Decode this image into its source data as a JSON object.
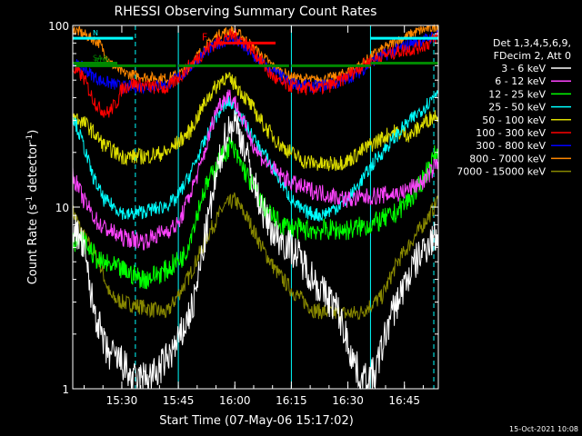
{
  "chart_data": {
    "type": "line",
    "title": "RHESSI Observing Summary Count Rates",
    "xlabel": "Start Time (07-May-06 15:17:02)",
    "ylabel_main": "Count Rate (s",
    "ylabel_exp1": "-1",
    "ylabel_mid": " detector",
    "ylabel_exp2": "-1",
    "ylabel_end": ")",
    "y_scale": "log",
    "ylim": [
      1,
      100
    ],
    "xlim": [
      15.283,
      16.9
    ],
    "x_tick_labels": [
      "15:30",
      "15:45",
      "16:00",
      "16:15",
      "16:30",
      "16:45"
    ],
    "x_tick_values": [
      15.5,
      15.75,
      16.0,
      16.25,
      16.5,
      16.75
    ],
    "y_tick_labels": [
      "1",
      "10",
      "100"
    ],
    "y_tick_values": [
      1,
      10,
      100
    ],
    "legend_header": [
      "Det 1,3,4,5,6,9,",
      "FDecim 2, Att 0"
    ],
    "timestamp": "15-Oct-2021 10:08",
    "series": [
      {
        "name": "3 - 6 keV",
        "color": "#ffffff",
        "points": [
          [
            15.283,
            8
          ],
          [
            15.33,
            6
          ],
          [
            15.37,
            3
          ],
          [
            15.43,
            1.6
          ],
          [
            15.5,
            1.4
          ],
          [
            15.55,
            1.1
          ],
          [
            15.65,
            1.2
          ],
          [
            15.75,
            1.8
          ],
          [
            15.82,
            3
          ],
          [
            15.87,
            7
          ],
          [
            15.92,
            15
          ],
          [
            15.96,
            25
          ],
          [
            16.0,
            30
          ],
          [
            16.04,
            22
          ],
          [
            16.08,
            14
          ],
          [
            16.13,
            9
          ],
          [
            16.18,
            7
          ],
          [
            16.25,
            6
          ],
          [
            16.3,
            5
          ],
          [
            16.38,
            3.5
          ],
          [
            16.45,
            2.8
          ],
          [
            16.52,
            1.5
          ],
          [
            16.56,
            1.1
          ],
          [
            16.62,
            1.2
          ],
          [
            16.68,
            2.3
          ],
          [
            16.74,
            3.5
          ],
          [
            16.8,
            5
          ],
          [
            16.86,
            6.5
          ],
          [
            16.9,
            7
          ]
        ]
      },
      {
        "name": "6 - 12 keV",
        "color": "#ff44ff",
        "points": [
          [
            15.283,
            15
          ],
          [
            15.33,
            11
          ],
          [
            15.4,
            8
          ],
          [
            15.5,
            6.8
          ],
          [
            15.6,
            6.5
          ],
          [
            15.75,
            8
          ],
          [
            15.85,
            17
          ],
          [
            15.92,
            35
          ],
          [
            15.97,
            42
          ],
          [
            16.0,
            38
          ],
          [
            16.05,
            27
          ],
          [
            16.1,
            20
          ],
          [
            16.15,
            17
          ],
          [
            16.2,
            15
          ],
          [
            16.28,
            13
          ],
          [
            16.38,
            12
          ],
          [
            16.5,
            11
          ],
          [
            16.62,
            11.5
          ],
          [
            16.74,
            12
          ],
          [
            16.84,
            14
          ],
          [
            16.9,
            18
          ]
        ]
      },
      {
        "name": "12 - 25 keV",
        "color": "#00ff00",
        "points": [
          [
            15.283,
            6.5
          ],
          [
            15.33,
            6.5
          ],
          [
            15.4,
            5
          ],
          [
            15.5,
            4.5
          ],
          [
            15.6,
            4
          ],
          [
            15.7,
            4.5
          ],
          [
            15.78,
            5.5
          ],
          [
            15.86,
            12
          ],
          [
            15.93,
            18
          ],
          [
            15.98,
            22
          ],
          [
            16.03,
            17
          ],
          [
            16.08,
            13
          ],
          [
            16.13,
            10
          ],
          [
            16.2,
            8
          ],
          [
            16.3,
            7.5
          ],
          [
            16.4,
            7.5
          ],
          [
            16.5,
            7.5
          ],
          [
            16.6,
            8
          ],
          [
            16.7,
            9
          ],
          [
            16.8,
            12
          ],
          [
            16.9,
            21
          ]
        ]
      },
      {
        "name": "25 - 50 keV",
        "color": "#00ffff",
        "points": [
          [
            15.283,
            32
          ],
          [
            15.3,
            28
          ],
          [
            15.33,
            22
          ],
          [
            15.37,
            15
          ],
          [
            15.42,
            11
          ],
          [
            15.47,
            10
          ],
          [
            15.52,
            9
          ],
          [
            15.6,
            9.5
          ],
          [
            15.68,
            10
          ],
          [
            15.74,
            11
          ],
          [
            15.8,
            15
          ],
          [
            15.86,
            22
          ],
          [
            15.92,
            32
          ],
          [
            15.97,
            38
          ],
          [
            16.0,
            36
          ],
          [
            16.05,
            28
          ],
          [
            16.1,
            22
          ],
          [
            16.15,
            18
          ],
          [
            16.2,
            14
          ],
          [
            16.25,
            11
          ],
          [
            16.3,
            9.5
          ],
          [
            16.38,
            9
          ],
          [
            16.45,
            10
          ],
          [
            16.5,
            11
          ],
          [
            16.56,
            14
          ],
          [
            16.62,
            18
          ],
          [
            16.68,
            22
          ],
          [
            16.74,
            27
          ],
          [
            16.8,
            32
          ],
          [
            16.86,
            38
          ],
          [
            16.9,
            45
          ]
        ]
      },
      {
        "name": "50 - 100 keV",
        "color": "#dddd00",
        "points": [
          [
            15.283,
            32
          ],
          [
            15.35,
            28
          ],
          [
            15.42,
            22
          ],
          [
            15.5,
            19
          ],
          [
            15.6,
            19
          ],
          [
            15.7,
            20
          ],
          [
            15.8,
            26
          ],
          [
            15.88,
            40
          ],
          [
            15.95,
            52
          ],
          [
            16.0,
            48
          ],
          [
            16.06,
            38
          ],
          [
            16.13,
            28
          ],
          [
            16.2,
            22
          ],
          [
            16.3,
            18
          ],
          [
            16.4,
            17
          ],
          [
            16.5,
            18
          ],
          [
            16.6,
            22
          ],
          [
            16.7,
            26
          ],
          [
            16.78,
            25
          ],
          [
            16.85,
            30
          ],
          [
            16.9,
            33
          ]
        ]
      },
      {
        "name": "100 - 300 keV",
        "color": "#ff0000",
        "points": [
          [
            15.283,
            58
          ],
          [
            15.33,
            52
          ],
          [
            15.37,
            40
          ],
          [
            15.4,
            35
          ],
          [
            15.44,
            33
          ],
          [
            15.48,
            38
          ],
          [
            15.5,
            45
          ],
          [
            15.55,
            48
          ],
          [
            15.62,
            46
          ],
          [
            15.7,
            45
          ],
          [
            15.74,
            50
          ],
          [
            15.8,
            60
          ],
          [
            15.88,
            75
          ],
          [
            15.95,
            85
          ],
          [
            16.0,
            88
          ],
          [
            16.05,
            80
          ],
          [
            16.1,
            68
          ],
          [
            16.15,
            55
          ],
          [
            16.2,
            48
          ],
          [
            16.3,
            45
          ],
          [
            16.38,
            45
          ],
          [
            16.45,
            48
          ],
          [
            16.52,
            55
          ],
          [
            16.58,
            62
          ],
          [
            16.65,
            68
          ],
          [
            16.72,
            72
          ],
          [
            16.8,
            75
          ],
          [
            16.86,
            80
          ],
          [
            16.9,
            88
          ]
        ]
      },
      {
        "name": "300 - 800 keV",
        "color": "#0000ff",
        "points": [
          [
            15.283,
            62
          ],
          [
            15.33,
            58
          ],
          [
            15.4,
            50
          ],
          [
            15.5,
            46
          ],
          [
            15.6,
            46
          ],
          [
            15.7,
            47
          ],
          [
            15.78,
            55
          ],
          [
            15.86,
            70
          ],
          [
            15.93,
            80
          ],
          [
            15.98,
            84
          ],
          [
            16.02,
            80
          ],
          [
            16.08,
            68
          ],
          [
            16.15,
            58
          ],
          [
            16.25,
            48
          ],
          [
            16.35,
            46
          ],
          [
            16.45,
            48
          ],
          [
            16.55,
            55
          ],
          [
            16.62,
            65
          ],
          [
            16.7,
            72
          ],
          [
            16.78,
            80
          ],
          [
            16.85,
            84
          ],
          [
            16.9,
            90
          ]
        ]
      },
      {
        "name": "800 - 7000 keV",
        "color": "#ff8800",
        "points": [
          [
            15.283,
            95
          ],
          [
            15.33,
            90
          ],
          [
            15.4,
            80
          ],
          [
            15.45,
            62
          ],
          [
            15.5,
            55
          ],
          [
            15.6,
            52
          ],
          [
            15.7,
            51
          ],
          [
            15.78,
            56
          ],
          [
            15.85,
            72
          ],
          [
            15.92,
            88
          ],
          [
            15.98,
            94
          ],
          [
            16.03,
            88
          ],
          [
            16.1,
            72
          ],
          [
            16.18,
            58
          ],
          [
            16.25,
            52
          ],
          [
            16.35,
            50
          ],
          [
            16.45,
            52
          ],
          [
            16.55,
            60
          ],
          [
            16.62,
            70
          ],
          [
            16.7,
            80
          ],
          [
            16.8,
            92
          ],
          [
            16.9,
            100
          ]
        ]
      },
      {
        "name": "7000 - 15000 keV",
        "color": "#888800",
        "points": [
          [
            15.283,
            9.5
          ],
          [
            15.33,
            7
          ],
          [
            15.4,
            5
          ],
          [
            15.45,
            3.2
          ],
          [
            15.5,
            3
          ],
          [
            15.6,
            2.8
          ],
          [
            15.7,
            2.6
          ],
          [
            15.8,
            4.2
          ],
          [
            15.88,
            7
          ],
          [
            15.95,
            10
          ],
          [
            16.0,
            11
          ],
          [
            16.06,
            8.5
          ],
          [
            16.12,
            6
          ],
          [
            16.18,
            4.5
          ],
          [
            16.25,
            3.5
          ],
          [
            16.35,
            2.7
          ],
          [
            16.45,
            2.6
          ],
          [
            16.55,
            2.6
          ],
          [
            16.65,
            3.2
          ],
          [
            16.72,
            5
          ],
          [
            16.8,
            7
          ],
          [
            16.86,
            9
          ],
          [
            16.9,
            11
          ]
        ]
      }
    ],
    "flags": [
      {
        "label": "N",
        "color": "#00ffff",
        "y": 85,
        "segments": [
          [
            15.283,
            15.55
          ],
          [
            16.6,
            16.9
          ]
        ]
      },
      {
        "label": "F",
        "color": "#ff0000",
        "y": 80,
        "segments": [
          [
            15.91,
            16.18
          ]
        ]
      },
      {
        "label": "SAA",
        "color": "#008800",
        "y": 62,
        "segments": [
          [
            15.283,
            15.48
          ],
          [
            16.6,
            16.9
          ]
        ]
      },
      {
        "label": "RD6",
        "color": "#008800",
        "y": 60,
        "segments": [
          [
            15.29,
            15.74
          ],
          [
            15.75,
            16.24
          ],
          [
            16.25,
            16.6
          ]
        ]
      }
    ],
    "vlines_solid": [
      15.75,
      16.25,
      16.6
    ],
    "vlines_dashed": [
      15.56,
      16.88
    ]
  }
}
